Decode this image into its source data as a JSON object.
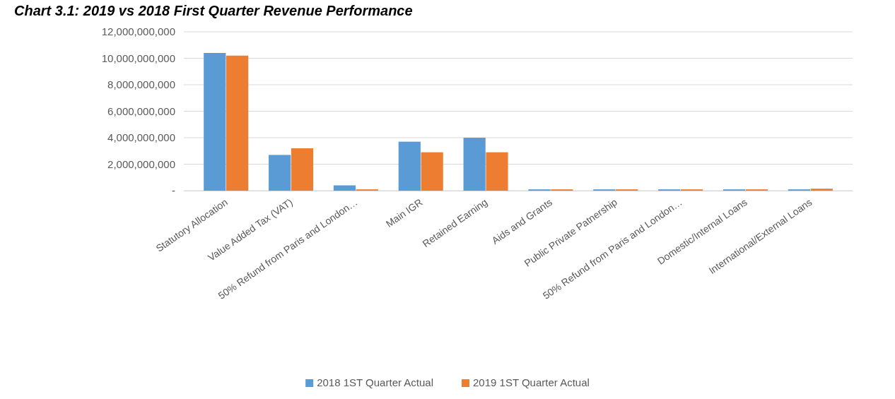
{
  "chart_data": {
    "type": "bar",
    "title": "Chart 3.1: 2019 vs 2018 First Quarter Revenue Performance",
    "categories": [
      "Statutory Allocation",
      "Value Added Tax (VAT)",
      "50% Refund from Paris and London…",
      "Main IGR",
      "Retained Earning",
      "Aids and Grants",
      "Public Private Patnership",
      "50% Refund from Paris and London…",
      "Domestic/Internal Loans",
      "International/External Loans"
    ],
    "series": [
      {
        "name": "2018 1ST Quarter Actual",
        "color": "#5b9bd5",
        "values": [
          10400000000,
          2700000000,
          400000000,
          3700000000,
          4000000000,
          100000000,
          100000000,
          100000000,
          100000000,
          100000000
        ]
      },
      {
        "name": "2019 1ST Quarter Actual",
        "color": "#ed7d31",
        "values": [
          10200000000,
          3200000000,
          100000000,
          2900000000,
          2900000000,
          100000000,
          100000000,
          100000000,
          100000000,
          150000000
        ]
      }
    ],
    "ylim": [
      0,
      12000000000
    ],
    "yticks": [
      {
        "value": 0,
        "label": "-"
      },
      {
        "value": 2000000000,
        "label": "2,000,000,000"
      },
      {
        "value": 4000000000,
        "label": "4,000,000,000"
      },
      {
        "value": 6000000000,
        "label": "6,000,000,000"
      },
      {
        "value": 8000000000,
        "label": "8,000,000,000"
      },
      {
        "value": 10000000000,
        "label": "10,000,000,000"
      },
      {
        "value": 12000000000,
        "label": "12,000,000,000"
      }
    ],
    "grid": true,
    "legend": "bottom"
  }
}
